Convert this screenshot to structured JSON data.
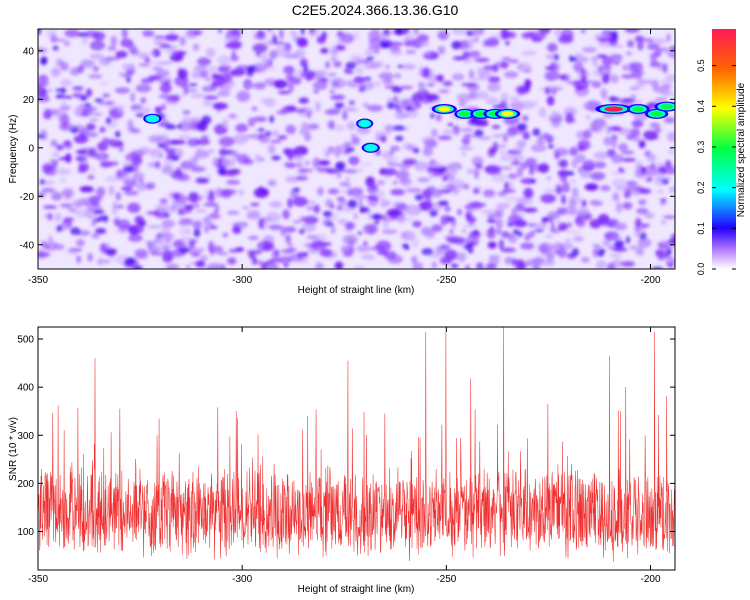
{
  "chart_data": [
    {
      "type": "heatmap",
      "title": "C2E5.2024.366.13.36.G10",
      "xlabel": "Height of straight line (km)",
      "ylabel": "Frequency (Hz)",
      "xlim": [
        -350,
        -194
      ],
      "ylim": [
        -50,
        49
      ],
      "xticks": [
        "-350",
        "-300",
        "-250",
        "-200"
      ],
      "yticks": [
        "40",
        "20",
        "0",
        "-20",
        "-40"
      ],
      "colorbar": {
        "label": "Normalized spectral amplitude",
        "range": [
          0.0,
          0.59
        ],
        "ticks": [
          "0.0",
          "0.1",
          "0.2",
          "0.3",
          "0.4",
          "0.5"
        ]
      },
      "features": [
        {
          "x": -250.5,
          "y": 16,
          "value": 0.3
        },
        {
          "x": -245.5,
          "y": 14,
          "value": 0.2
        },
        {
          "x": -241.5,
          "y": 14,
          "value": 0.22
        },
        {
          "x": -238,
          "y": 14,
          "value": 0.27
        },
        {
          "x": -235,
          "y": 14,
          "value": 0.3
        },
        {
          "x": -209,
          "y": 16,
          "value": 0.57
        },
        {
          "x": -203,
          "y": 16,
          "value": 0.24
        },
        {
          "x": -198.5,
          "y": 14,
          "value": 0.26
        },
        {
          "x": -196,
          "y": 17,
          "value": 0.29
        },
        {
          "x": -322,
          "y": 12,
          "value": 0.14
        },
        {
          "x": -268.5,
          "y": 0,
          "value": 0.14
        },
        {
          "x": -270,
          "y": 10,
          "value": 0.12
        }
      ]
    },
    {
      "type": "line",
      "xlabel": "Height of straight line (km)",
      "ylabel": "SNR (10 * v/v)",
      "xlim": [
        -350,
        -194
      ],
      "ylim": [
        20,
        525
      ],
      "xticks": [
        "-350",
        "-300",
        "-250",
        "-200"
      ],
      "yticks": [
        "500",
        "400",
        "300",
        "200",
        "100"
      ],
      "color": "#f03030",
      "baseline": 140,
      "spikes": [
        {
          "x": -345,
          "y": 362
        },
        {
          "x": -336,
          "y": 460
        },
        {
          "x": -330,
          "y": 355
        },
        {
          "x": -306,
          "y": 358
        },
        {
          "x": -284,
          "y": 340
        },
        {
          "x": -274,
          "y": 455
        },
        {
          "x": -265,
          "y": 345
        },
        {
          "x": -255,
          "y": 515
        },
        {
          "x": -250,
          "y": 515
        },
        {
          "x": -244,
          "y": 418
        },
        {
          "x": -236,
          "y": 525
        },
        {
          "x": -225,
          "y": 365
        },
        {
          "x": -210,
          "y": 465
        },
        {
          "x": -206,
          "y": 400
        },
        {
          "x": -199,
          "y": 515
        },
        {
          "x": -196,
          "y": 382
        }
      ]
    }
  ]
}
